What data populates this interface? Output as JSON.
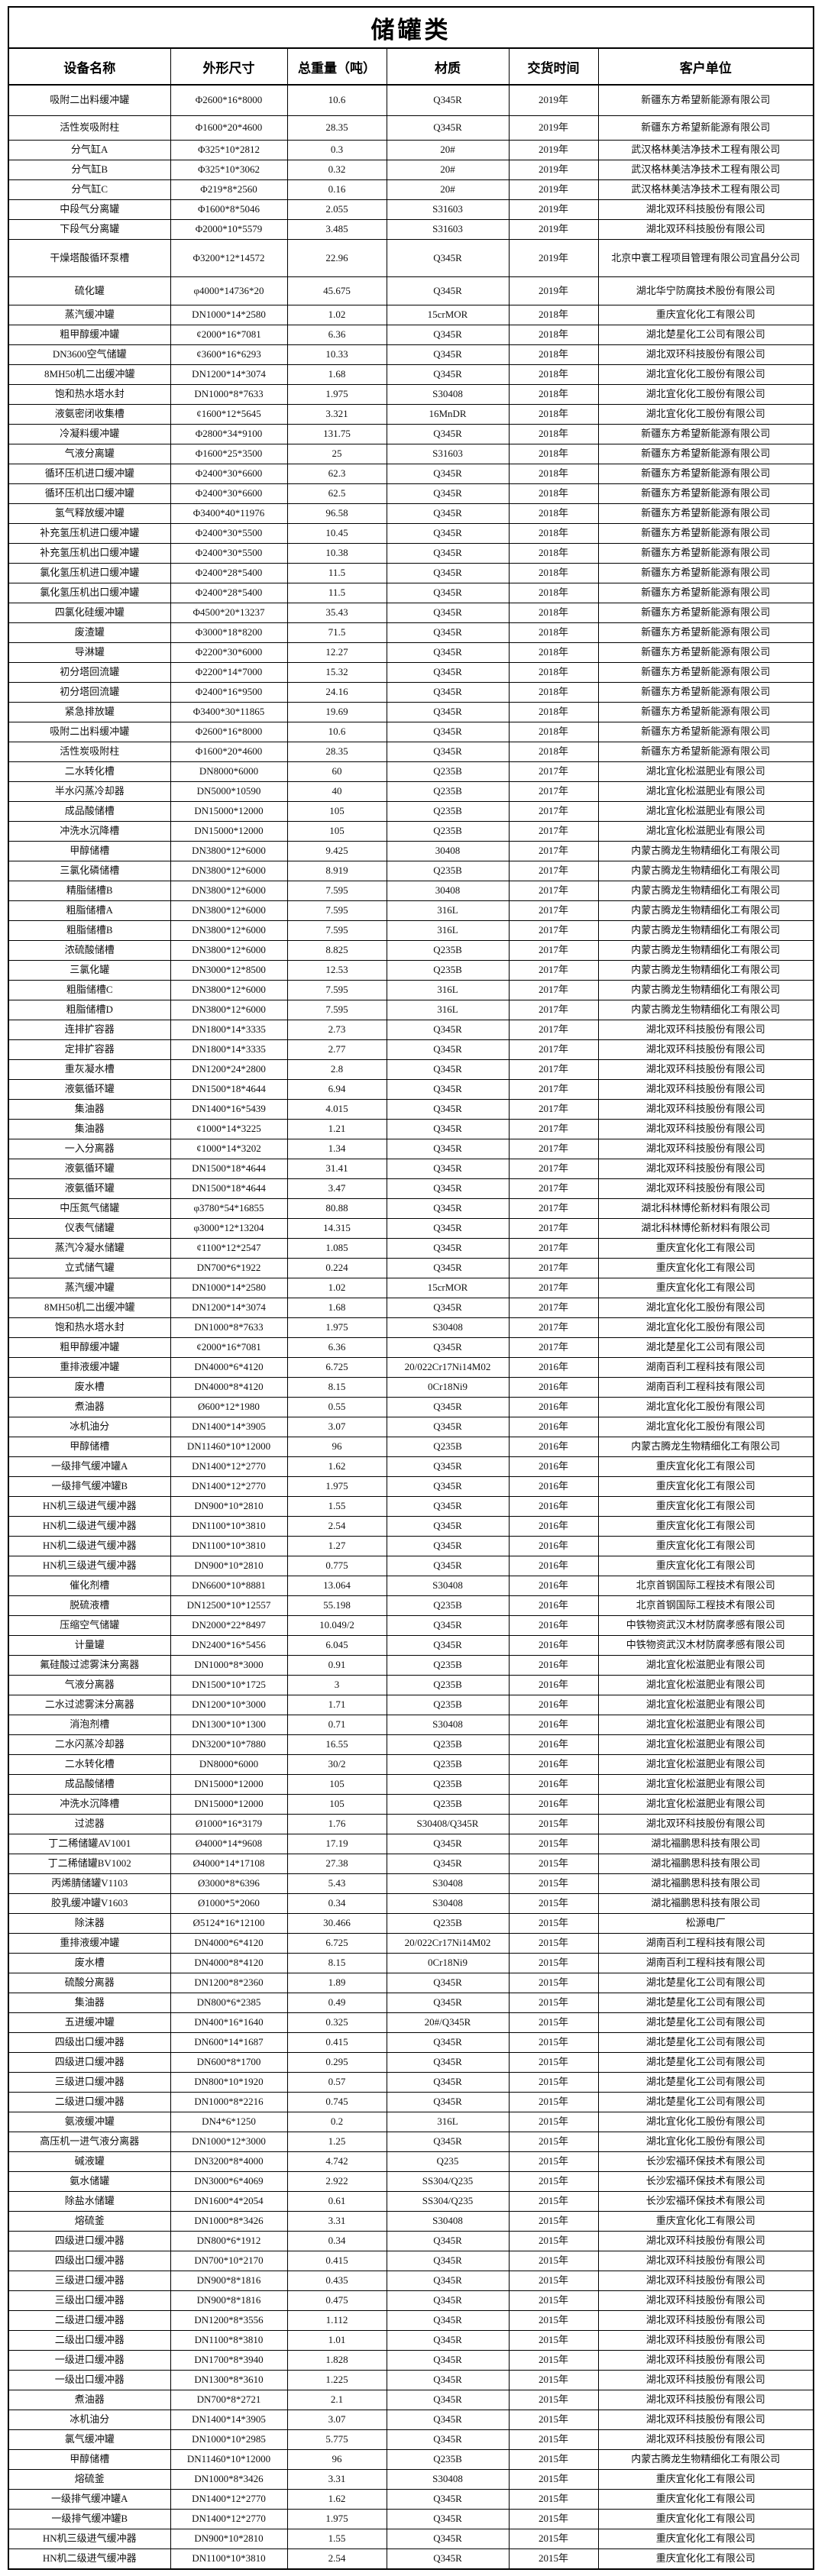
{
  "page": {
    "title": "储罐类"
  },
  "colors": {
    "border": "#000000",
    "text": "#111111",
    "background": "#ffffff"
  },
  "table": {
    "columns": [
      "设备名称",
      "外形尺寸",
      "总重量（吨）",
      "材质",
      "交货时间",
      "客户单位"
    ],
    "rows": [
      [
        "吸附二出料缓冲罐",
        "Φ2600*16*8000",
        "10.6",
        "Q345R",
        "2019年",
        "新疆东方希望新能源有限公司"
      ],
      [
        "活性炭吸附柱",
        "Φ1600*20*4600",
        "28.35",
        "Q345R",
        "2019年",
        "新疆东方希望新能源有限公司"
      ],
      [
        "分气缸A",
        "Φ325*10*2812",
        "0.3",
        "20#",
        "2019年",
        "武汉格林美洁净技术工程有限公司"
      ],
      [
        "分气缸B",
        "Φ325*10*3062",
        "0.32",
        "20#",
        "2019年",
        "武汉格林美洁净技术工程有限公司"
      ],
      [
        "分气缸C",
        "Φ219*8*2560",
        "0.16",
        "20#",
        "2019年",
        "武汉格林美洁净技术工程有限公司"
      ],
      [
        "中段气分离罐",
        "Φ1600*8*5046",
        "2.055",
        "S31603",
        "2019年",
        "湖北双环科技股份有限公司"
      ],
      [
        "下段气分离罐",
        "Φ2000*10*5579",
        "3.485",
        "S31603",
        "2019年",
        "湖北双环科技股份有限公司"
      ],
      [
        "干燥塔酸循环泵槽",
        "Φ3200*12*14572",
        "22.96",
        "Q345R",
        "2019年",
        "北京中寰工程项目管理有限公司宜昌分公司"
      ],
      [
        "硫化罐",
        "φ4000*14736*20",
        "45.675",
        "Q345R",
        "2019年",
        "湖北华宁防腐技术股份有限公司"
      ],
      [
        "蒸汽缓冲罐",
        "DN1000*14*2580",
        "1.02",
        "15crMOR",
        "2018年",
        "重庆宜化化工有限公司"
      ],
      [
        "粗甲醇缓冲罐",
        "¢2000*16*7081",
        "6.36",
        "Q345R",
        "2018年",
        "湖北楚星化工公司有限公司"
      ],
      [
        "DN3600空气储罐",
        "¢3600*16*6293",
        "10.33",
        "Q345R",
        "2018年",
        "湖北双环科技股份有限公司"
      ],
      [
        "8MH50机二出缓冲罐",
        "DN1200*14*3074",
        "1.68",
        "Q345R",
        "2018年",
        "湖北宜化化工股份有限公司"
      ],
      [
        "饱和热水塔水封",
        "DN1000*8*7633",
        "1.975",
        "S30408",
        "2018年",
        "湖北宜化化工股份有限公司"
      ],
      [
        "液氨密闭收集槽",
        "¢1600*12*5645",
        "3.321",
        "16MnDR",
        "2018年",
        "湖北宜化化工股份有限公司"
      ],
      [
        "冷凝料缓冲罐",
        "Φ2800*34*9100",
        "131.75",
        "Q345R",
        "2018年",
        "新疆东方希望新能源有限公司"
      ],
      [
        "气液分离罐",
        "Φ1600*25*3500",
        "25",
        "S31603",
        "2018年",
        "新疆东方希望新能源有限公司"
      ],
      [
        "循环压机进口缓冲罐",
        "Φ2400*30*6600",
        "62.3",
        "Q345R",
        "2018年",
        "新疆东方希望新能源有限公司"
      ],
      [
        "循环压机出口缓冲罐",
        "Φ2400*30*6600",
        "62.5",
        "Q345R",
        "2018年",
        "新疆东方希望新能源有限公司"
      ],
      [
        "氢气释放缓冲罐",
        "Φ3400*40*11976",
        "96.58",
        "Q345R",
        "2018年",
        "新疆东方希望新能源有限公司"
      ],
      [
        "补充氢压机进口缓冲罐",
        "Φ2400*30*5500",
        "10.45",
        "Q345R",
        "2018年",
        "新疆东方希望新能源有限公司"
      ],
      [
        "补充氢压机出口缓冲罐",
        "Φ2400*30*5500",
        "10.38",
        "Q345R",
        "2018年",
        "新疆东方希望新能源有限公司"
      ],
      [
        "氯化氢压机进口缓冲罐",
        "Φ2400*28*5400",
        "11.5",
        "Q345R",
        "2018年",
        "新疆东方希望新能源有限公司"
      ],
      [
        "氯化氢压机出口缓冲罐",
        "Φ2400*28*5400",
        "11.5",
        "Q345R",
        "2018年",
        "新疆东方希望新能源有限公司"
      ],
      [
        "四氯化硅缓冲罐",
        "Φ4500*20*13237",
        "35.43",
        "Q345R",
        "2018年",
        "新疆东方希望新能源有限公司"
      ],
      [
        "废渣罐",
        "Φ3000*18*8200",
        "71.5",
        "Q345R",
        "2018年",
        "新疆东方希望新能源有限公司"
      ],
      [
        "导淋罐",
        "Φ2200*30*6000",
        "12.27",
        "Q345R",
        "2018年",
        "新疆东方希望新能源有限公司"
      ],
      [
        "初分塔回流罐",
        "Φ2200*14*7000",
        "15.32",
        "Q345R",
        "2018年",
        "新疆东方希望新能源有限公司"
      ],
      [
        "初分塔回流罐",
        "Φ2400*16*9500",
        "24.16",
        "Q345R",
        "2018年",
        "新疆东方希望新能源有限公司"
      ],
      [
        "紧急排放罐",
        "Φ3400*30*11865",
        "19.69",
        "Q345R",
        "2018年",
        "新疆东方希望新能源有限公司"
      ],
      [
        "吸附二出料缓冲罐",
        "Φ2600*16*8000",
        "10.6",
        "Q345R",
        "2018年",
        "新疆东方希望新能源有限公司"
      ],
      [
        "活性炭吸附柱",
        "Φ1600*20*4600",
        "28.35",
        "Q345R",
        "2018年",
        "新疆东方希望新能源有限公司"
      ],
      [
        "二水转化槽",
        "DN8000*6000",
        "60",
        "Q235B",
        "2017年",
        "湖北宜化松滋肥业有限公司"
      ],
      [
        "半水闪蒸冷却器",
        "DN5000*10590",
        "40",
        "Q235B",
        "2017年",
        "湖北宜化松滋肥业有限公司"
      ],
      [
        "成品酸储槽",
        "DN15000*12000",
        "105",
        "Q235B",
        "2017年",
        "湖北宜化松滋肥业有限公司"
      ],
      [
        "冲洗水沉降槽",
        "DN15000*12000",
        "105",
        "Q235B",
        "2017年",
        "湖北宜化松滋肥业有限公司"
      ],
      [
        "甲醇储槽",
        "DN3800*12*6000",
        "9.425",
        "30408",
        "2017年",
        "内蒙古腾龙生物精细化工有限公司"
      ],
      [
        "三氯化磷储槽",
        "DN3800*12*6000",
        "8.919",
        "Q235B",
        "2017年",
        "内蒙古腾龙生物精细化工有限公司"
      ],
      [
        "精脂储槽B",
        "DN3800*12*6000",
        "7.595",
        "30408",
        "2017年",
        "内蒙古腾龙生物精细化工有限公司"
      ],
      [
        "粗脂储槽A",
        "DN3800*12*6000",
        "7.595",
        "316L",
        "2017年",
        "内蒙古腾龙生物精细化工有限公司"
      ],
      [
        "粗脂储槽B",
        "DN3800*12*6000",
        "7.595",
        "316L",
        "2017年",
        "内蒙古腾龙生物精细化工有限公司"
      ],
      [
        "浓硫酸储槽",
        "DN3800*12*6000",
        "8.825",
        "Q235B",
        "2017年",
        "内蒙古腾龙生物精细化工有限公司"
      ],
      [
        "三氯化罐",
        "DN3000*12*8500",
        "12.53",
        "Q235B",
        "2017年",
        "内蒙古腾龙生物精细化工有限公司"
      ],
      [
        "粗脂储槽C",
        "DN3800*12*6000",
        "7.595",
        "316L",
        "2017年",
        "内蒙古腾龙生物精细化工有限公司"
      ],
      [
        "粗脂储槽D",
        "DN3800*12*6000",
        "7.595",
        "316L",
        "2017年",
        "内蒙古腾龙生物精细化工有限公司"
      ],
      [
        "连排扩容器",
        "DN1800*14*3335",
        "2.73",
        "Q345R",
        "2017年",
        "湖北双环科技股份有限公司"
      ],
      [
        "定排扩容器",
        "DN1800*14*3335",
        "2.77",
        "Q345R",
        "2017年",
        "湖北双环科技股份有限公司"
      ],
      [
        "重灰凝水槽",
        "DN1200*24*2800",
        "2.8",
        "Q345R",
        "2017年",
        "湖北双环科技股份有限公司"
      ],
      [
        "液氨循环罐",
        "DN1500*18*4644",
        "6.94",
        "Q345R",
        "2017年",
        "湖北双环科技股份有限公司"
      ],
      [
        "集油器",
        "DN1400*16*5439",
        "4.015",
        "Q345R",
        "2017年",
        "湖北双环科技股份有限公司"
      ],
      [
        "集油器",
        "¢1000*14*3225",
        "1.21",
        "Q345R",
        "2017年",
        "湖北双环科技股份有限公司"
      ],
      [
        "一入分离器",
        "¢1000*14*3202",
        "1.34",
        "Q345R",
        "2017年",
        "湖北双环科技股份有限公司"
      ],
      [
        "液氨循环罐",
        "DN1500*18*4644",
        "31.41",
        "Q345R",
        "2017年",
        "湖北双环科技股份有限公司"
      ],
      [
        "液氨循环罐",
        "DN1500*18*4644",
        "3.47",
        "Q345R",
        "2017年",
        "湖北双环科技股份有限公司"
      ],
      [
        "中压氮气储罐",
        "φ3780*54*16855",
        "80.88",
        "Q345R",
        "2017年",
        "湖北科林博伦新材料有限公司"
      ],
      [
        "仪表气储罐",
        "φ3000*12*13204",
        "14.315",
        "Q345R",
        "2017年",
        "湖北科林博伦新材料有限公司"
      ],
      [
        "蒸汽冷凝水储罐",
        "¢1100*12*2547",
        "1.085",
        "Q345R",
        "2017年",
        "重庆宜化化工有限公司"
      ],
      [
        "立式储气罐",
        "DN700*6*1922",
        "0.224",
        "Q345R",
        "2017年",
        "重庆宜化化工有限公司"
      ],
      [
        "蒸汽缓冲罐",
        "DN1000*14*2580",
        "1.02",
        "15crMOR",
        "2017年",
        "重庆宜化化工有限公司"
      ],
      [
        "8MH50机二出缓冲罐",
        "DN1200*14*3074",
        "1.68",
        "Q345R",
        "2017年",
        "湖北宜化化工股份有限公司"
      ],
      [
        "饱和热水塔水封",
        "DN1000*8*7633",
        "1.975",
        "S30408",
        "2017年",
        "湖北宜化化工股份有限公司"
      ],
      [
        "粗甲醇缓冲罐",
        "¢2000*16*7081",
        "6.36",
        "Q345R",
        "2017年",
        "湖北楚星化工公司有限公司"
      ],
      [
        "重排液缓冲罐",
        "DN4000*6*4120",
        "6.725",
        "20/022Cr17Ni14M02",
        "2016年",
        "湖南百利工程科技有限公司"
      ],
      [
        "废水槽",
        "DN4000*8*4120",
        "8.15",
        "0Cr18Ni9",
        "2016年",
        "湖南百利工程科技有限公司"
      ],
      [
        "煮油器",
        "Ø600*12*1980",
        "0.55",
        "Q345R",
        "2016年",
        "湖北宜化化工股份有限公司"
      ],
      [
        "冰机油分",
        "DN1400*14*3905",
        "3.07",
        "Q345R",
        "2016年",
        "湖北宜化化工股份有限公司"
      ],
      [
        "甲醇储槽",
        "DN11460*10*12000",
        "96",
        "Q235B",
        "2016年",
        "内蒙古腾龙生物精细化工有限公司"
      ],
      [
        "一级排气缓冲罐A",
        "DN1400*12*2770",
        "1.62",
        "Q345R",
        "2016年",
        "重庆宜化化工有限公司"
      ],
      [
        "一级排气缓冲罐B",
        "DN1400*12*2770",
        "1.975",
        "Q345R",
        "2016年",
        "重庆宜化化工有限公司"
      ],
      [
        "HN机三级进气缓冲器",
        "DN900*10*2810",
        "1.55",
        "Q345R",
        "2016年",
        "重庆宜化化工有限公司"
      ],
      [
        "HN机二级进气缓冲器",
        "DN1100*10*3810",
        "2.54",
        "Q345R",
        "2016年",
        "重庆宜化化工有限公司"
      ],
      [
        "HN机二级进气缓冲器",
        "DN1100*10*3810",
        "1.27",
        "Q345R",
        "2016年",
        "重庆宜化化工有限公司"
      ],
      [
        "HN机三级进气缓冲器",
        "DN900*10*2810",
        "0.775",
        "Q345R",
        "2016年",
        "重庆宜化化工有限公司"
      ],
      [
        "催化剂槽",
        "DN6600*10*8881",
        "13.064",
        "S30408",
        "2016年",
        "北京首钢国际工程技术有限公司"
      ],
      [
        "脱硫液槽",
        "DN12500*10*12557",
        "55.198",
        "Q235B",
        "2016年",
        "北京首钢国际工程技术有限公司"
      ],
      [
        "压缩空气储罐",
        "DN2000*22*8497",
        "10.049/2",
        "Q345R",
        "2016年",
        "中铁物资武汉木材防腐孝感有限公司"
      ],
      [
        "计量罐",
        "DN2400*16*5456",
        "6.045",
        "Q345R",
        "2016年",
        "中铁物资武汉木材防腐孝感有限公司"
      ],
      [
        "氟硅酸过滤雾沫分离器",
        "DN1000*8*3000",
        "0.91",
        "Q235B",
        "2016年",
        "湖北宜化松滋肥业有限公司"
      ],
      [
        "气液分离器",
        "DN1500*10*1725",
        "3",
        "Q235B",
        "2016年",
        "湖北宜化松滋肥业有限公司"
      ],
      [
        "二水过滤雾沫分离器",
        "DN1200*10*3000",
        "1.71",
        "Q235B",
        "2016年",
        "湖北宜化松滋肥业有限公司"
      ],
      [
        "消泡剂槽",
        "DN1300*10*1300",
        "0.71",
        "S30408",
        "2016年",
        "湖北宜化松滋肥业有限公司"
      ],
      [
        "二水闪蒸冷却器",
        "DN3200*10*7880",
        "16.55",
        "Q235B",
        "2016年",
        "湖北宜化松滋肥业有限公司"
      ],
      [
        "二水转化槽",
        "DN8000*6000",
        "30/2",
        "Q235B",
        "2016年",
        "湖北宜化松滋肥业有限公司"
      ],
      [
        "成品酸储槽",
        "DN15000*12000",
        "105",
        "Q235B",
        "2016年",
        "湖北宜化松滋肥业有限公司"
      ],
      [
        "冲洗水沉降槽",
        "DN15000*12000",
        "105",
        "Q235B",
        "2016年",
        "湖北宜化松滋肥业有限公司"
      ],
      [
        "过滤器",
        "Ø1000*16*3179",
        "1.76",
        "S30408/Q345R",
        "2015年",
        "湖北双环科技股份有限公司"
      ],
      [
        "丁二稀储罐AV1001",
        "Ø4000*14*9608",
        "17.19",
        "Q345R",
        "2015年",
        "湖北福鹏思科技有限公司"
      ],
      [
        "丁二稀储罐BV1002",
        "Ø4000*14*17108",
        "27.38",
        "Q345R",
        "2015年",
        "湖北福鹏思科技有限公司"
      ],
      [
        "丙烯腈储罐V1103",
        "Ø3000*8*6396",
        "5.43",
        "S30408",
        "2015年",
        "湖北福鹏思科技有限公司"
      ],
      [
        "胶乳缓冲罐V1603",
        "Ø1000*5*2060",
        "0.34",
        "S30408",
        "2015年",
        "湖北福鹏思科技有限公司"
      ],
      [
        "除沫器",
        "Ø5124*16*12100",
        "30.466",
        "Q235B",
        "2015年",
        "松源电厂"
      ],
      [
        "重排液缓冲罐",
        "DN4000*6*4120",
        "6.725",
        "20/022Cr17Ni14M02",
        "2015年",
        "湖南百利工程科技有限公司"
      ],
      [
        "废水槽",
        "DN4000*8*4120",
        "8.15",
        "0Cr18Ni9",
        "2015年",
        "湖南百利工程科技有限公司"
      ],
      [
        "硫酸分离器",
        "DN1200*8*2360",
        "1.89",
        "Q345R",
        "2015年",
        "湖北楚星化工公司有限公司"
      ],
      [
        "集油器",
        "DN800*6*2385",
        "0.49",
        "Q345R",
        "2015年",
        "湖北楚星化工公司有限公司"
      ],
      [
        "五进缓冲罐",
        "DN400*16*1640",
        "0.325",
        "20#/Q345R",
        "2015年",
        "湖北楚星化工公司有限公司"
      ],
      [
        "四级出口缓冲器",
        "DN600*14*1687",
        "0.415",
        "Q345R",
        "2015年",
        "湖北楚星化工公司有限公司"
      ],
      [
        "四级进口缓冲器",
        "DN600*8*1700",
        "0.295",
        "Q345R",
        "2015年",
        "湖北楚星化工公司有限公司"
      ],
      [
        "三级进口缓冲器",
        "DN800*10*1920",
        "0.57",
        "Q345R",
        "2015年",
        "湖北楚星化工公司有限公司"
      ],
      [
        "二级进口缓冲器",
        "DN1000*8*2216",
        "0.745",
        "Q345R",
        "2015年",
        "湖北楚星化工公司有限公司"
      ],
      [
        "氨液缓冲罐",
        "DN4*6*1250",
        "0.2",
        "316L",
        "2015年",
        "湖北宜化化工股份有限公司"
      ],
      [
        "高压机一进气液分离器",
        "DN1000*12*3000",
        "1.25",
        "Q345R",
        "2015年",
        "湖北宜化化工股份有限公司"
      ],
      [
        "碱液罐",
        "DN3200*8*4000",
        "4.742",
        "Q235",
        "2015年",
        "长沙宏福环保技术有限公司"
      ],
      [
        "氨水储罐",
        "DN3000*6*4069",
        "2.922",
        "SS304/Q235",
        "2015年",
        "长沙宏福环保技术有限公司"
      ],
      [
        "除盐水储罐",
        "DN1600*4*2054",
        "0.61",
        "SS304/Q235",
        "2015年",
        "长沙宏福环保技术有限公司"
      ],
      [
        "熔硫釜",
        "DN1000*8*3426",
        "3.31",
        "S30408",
        "2015年",
        "重庆宜化化工有限公司"
      ],
      [
        "四级进口缓冲器",
        "DN800*6*1912",
        "0.34",
        "Q345R",
        "2015年",
        "湖北双环科技股份有限公司"
      ],
      [
        "四级出口缓冲器",
        "DN700*10*2170",
        "0.415",
        "Q345R",
        "2015年",
        "湖北双环科技股份有限公司"
      ],
      [
        "三级进口缓冲器",
        "DN900*8*1816",
        "0.435",
        "Q345R",
        "2015年",
        "湖北双环科技股份有限公司"
      ],
      [
        "三级出口缓冲器",
        "DN900*8*1816",
        "0.475",
        "Q345R",
        "2015年",
        "湖北双环科技股份有限公司"
      ],
      [
        "二级进口缓冲器",
        "DN1200*8*3556",
        "1.112",
        "Q345R",
        "2015年",
        "湖北双环科技股份有限公司"
      ],
      [
        "二级出口缓冲器",
        "DN1100*8*3810",
        "1.01",
        "Q345R",
        "2015年",
        "湖北双环科技股份有限公司"
      ],
      [
        "一级进口缓冲器",
        "DN1700*8*3940",
        "1.828",
        "Q345R",
        "2015年",
        "湖北双环科技股份有限公司"
      ],
      [
        "一级出口缓冲器",
        "DN1300*8*3610",
        "1.225",
        "Q345R",
        "2015年",
        "湖北双环科技股份有限公司"
      ],
      [
        "煮油器",
        "DN700*8*2721",
        "2.1",
        "Q345R",
        "2015年",
        "湖北双环科技股份有限公司"
      ],
      [
        "冰机油分",
        "DN1400*14*3905",
        "3.07",
        "Q345R",
        "2015年",
        "湖北双环科技股份有限公司"
      ],
      [
        "氯气缓冲罐",
        "DN1000*10*2985",
        "5.775",
        "Q345R",
        "2015年",
        "湖北双环科技股份有限公司"
      ],
      [
        "甲醇储槽",
        "DN11460*10*12000",
        "96",
        "Q235B",
        "2015年",
        "内蒙古腾龙生物精细化工有限公司"
      ],
      [
        "熔硫釜",
        "DN1000*8*3426",
        "3.31",
        "S30408",
        "2015年",
        "重庆宜化化工有限公司"
      ],
      [
        "一级排气缓冲罐A",
        "DN1400*12*2770",
        "1.62",
        "Q345R",
        "2015年",
        "重庆宜化化工有限公司"
      ],
      [
        "一级排气缓冲罐B",
        "DN1400*12*2770",
        "1.975",
        "Q345R",
        "2015年",
        "重庆宜化化工有限公司"
      ],
      [
        "HN机三级进气缓冲器",
        "DN900*10*2810",
        "1.55",
        "Q345R",
        "2015年",
        "重庆宜化化工有限公司"
      ],
      [
        "HN机二级进气缓冲器",
        "DN1100*10*3810",
        "2.54",
        "Q345R",
        "2015年",
        "重庆宜化化工有限公司"
      ]
    ]
  }
}
